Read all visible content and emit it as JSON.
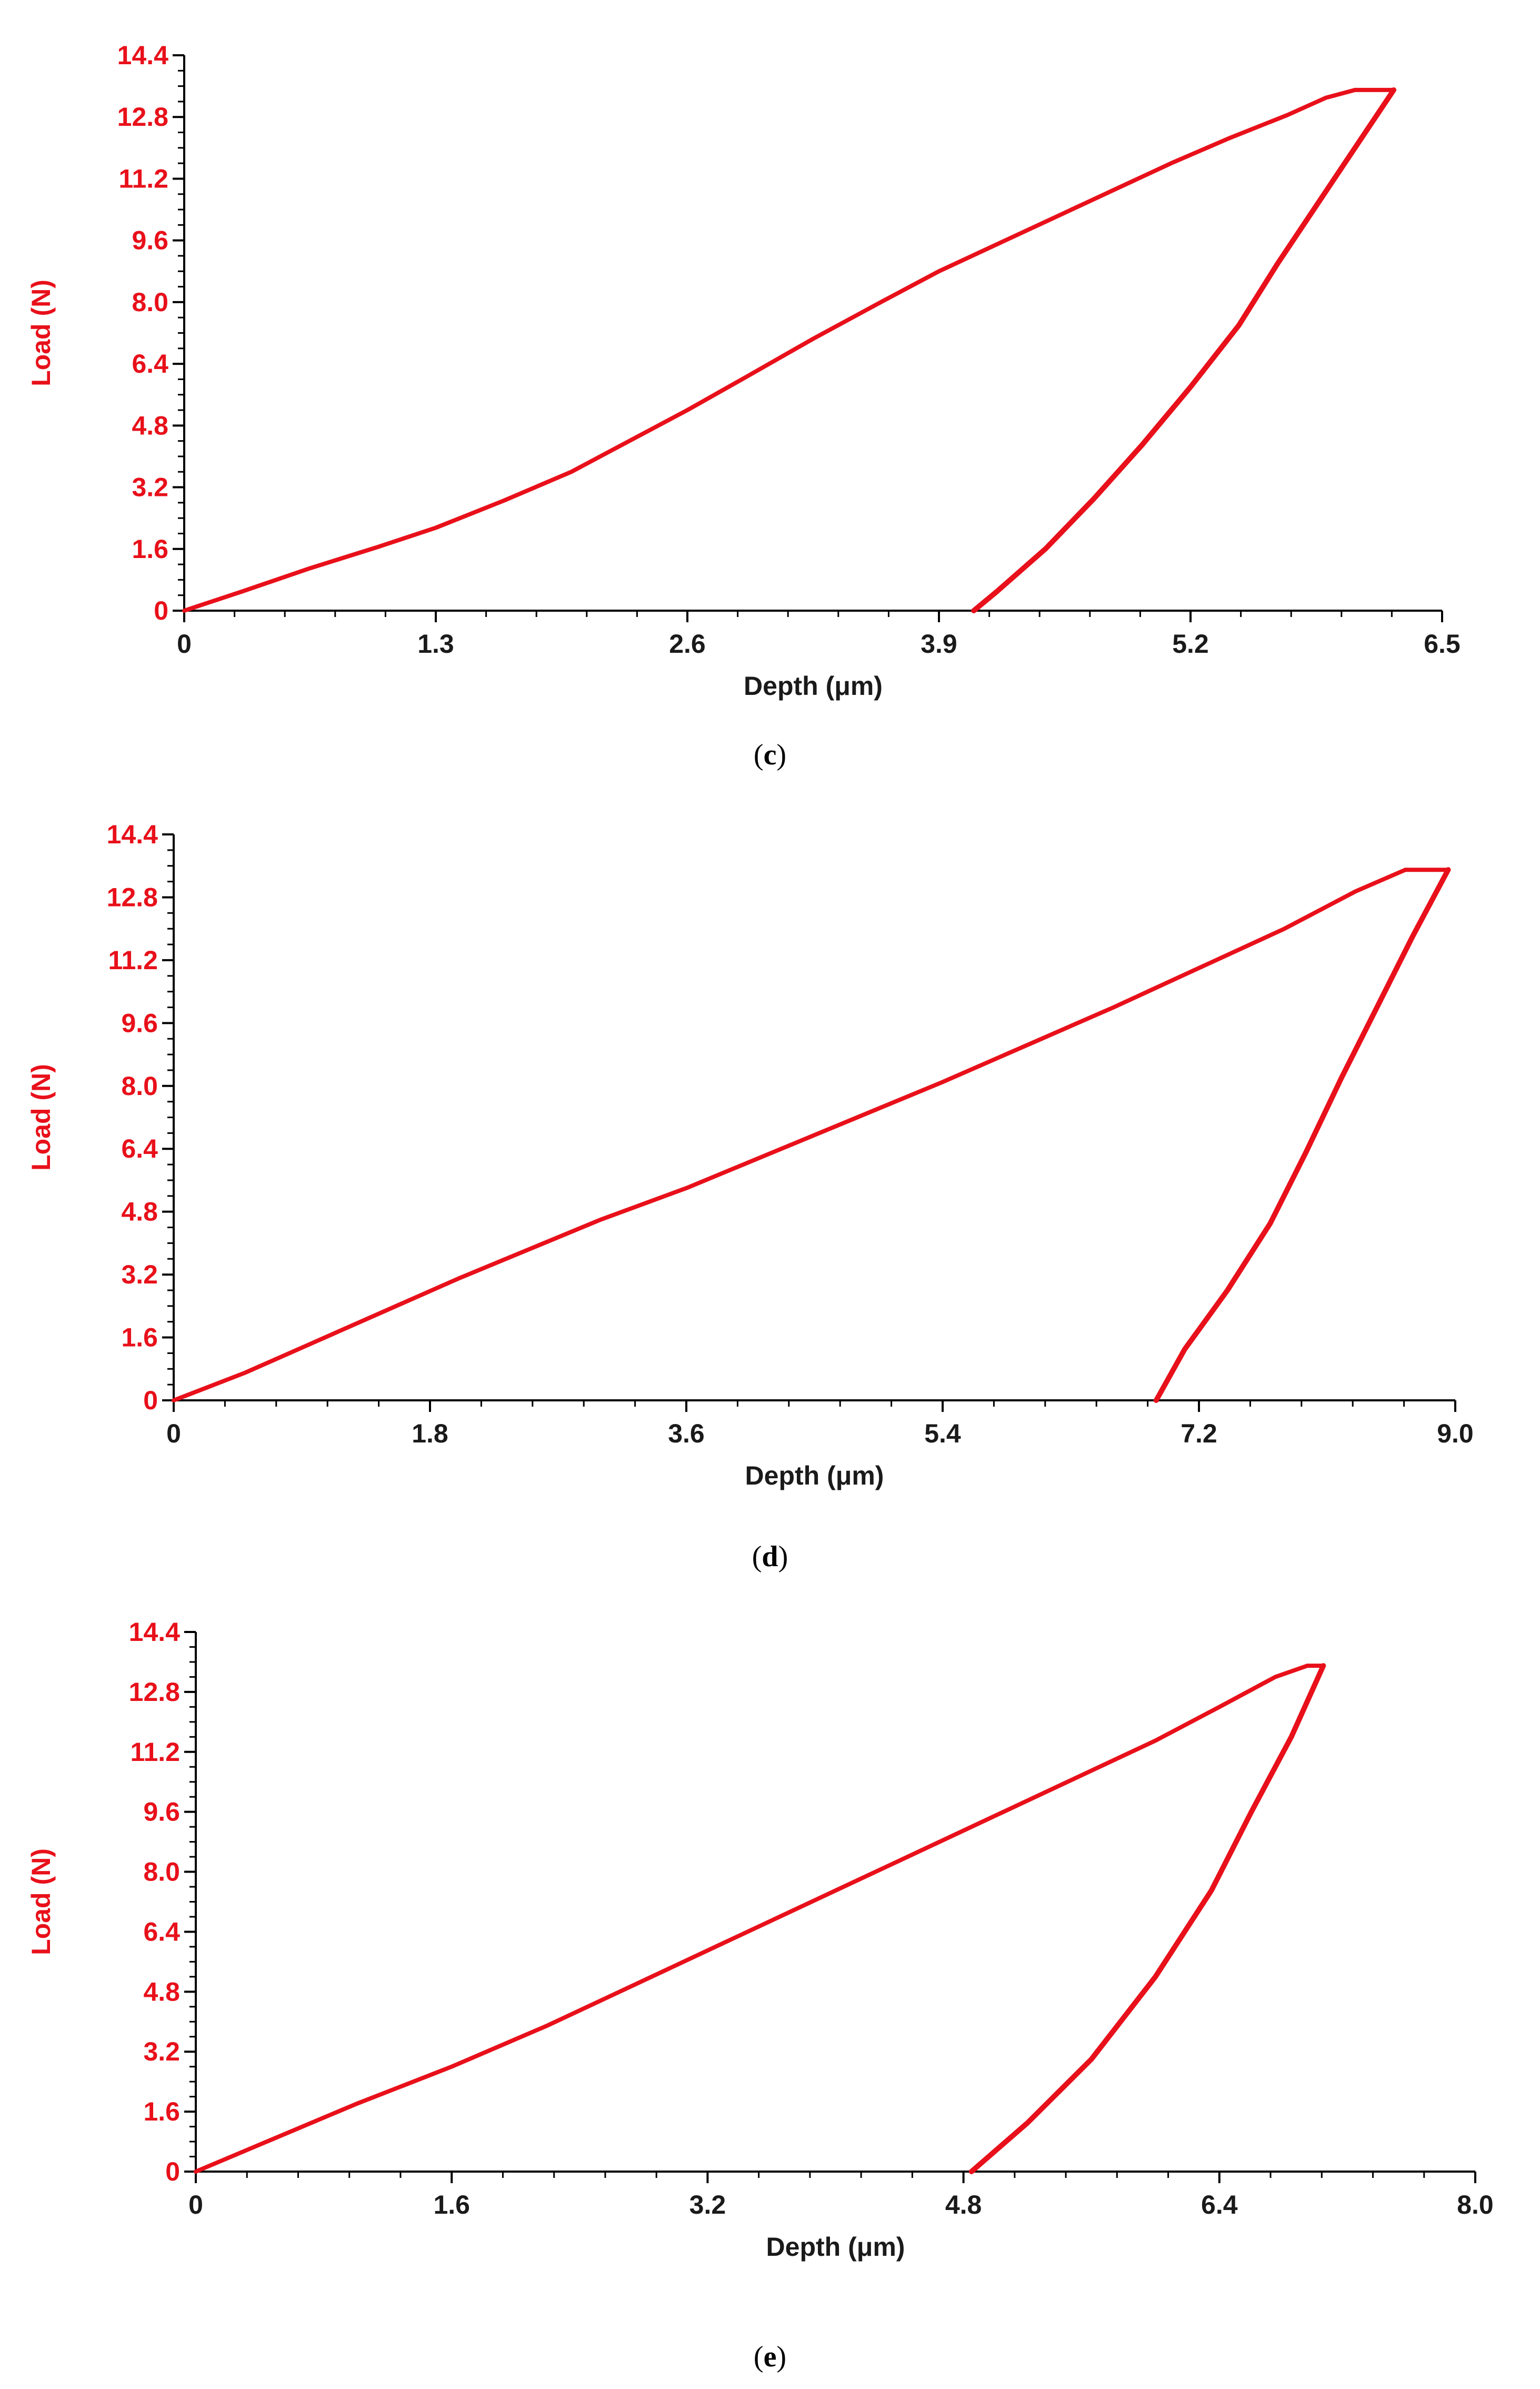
{
  "style": {
    "accent_color": "#e8101a",
    "axis_color": "#000000",
    "text_color": "#e8101a",
    "caption_color": "#000000"
  },
  "chart_data": [
    {
      "type": "line",
      "panel_label": "c",
      "xlabel": "Depth (μm)",
      "ylabel": "Load (N)",
      "xlim": [
        0,
        6.5
      ],
      "ylim": [
        0,
        14.4
      ],
      "x_ticks": [
        "0",
        "1.3",
        "2.6",
        "3.9",
        "5.2",
        "6.5"
      ],
      "y_ticks": [
        "0",
        "1.6",
        "3.2",
        "4.8",
        "6.4",
        "8.0",
        "9.6",
        "11.2",
        "12.8",
        "14.4"
      ],
      "grid": false,
      "series": [
        {
          "values": [
            [
              0,
              0
            ],
            [
              0.3,
              0.5
            ],
            [
              0.65,
              1.1
            ],
            [
              1.0,
              1.65
            ],
            [
              1.3,
              2.15
            ],
            [
              1.65,
              2.85
            ],
            [
              2.0,
              3.6
            ],
            [
              2.3,
              4.4
            ],
            [
              2.6,
              5.2
            ],
            [
              2.9,
              6.05
            ],
            [
              3.25,
              7.05
            ],
            [
              3.6,
              8.0
            ],
            [
              3.9,
              8.8
            ],
            [
              4.2,
              9.5
            ],
            [
              4.5,
              10.2
            ],
            [
              4.8,
              10.9
            ],
            [
              5.1,
              11.6
            ],
            [
              5.4,
              12.25
            ],
            [
              5.7,
              12.85
            ],
            [
              5.9,
              13.3
            ],
            [
              6.05,
              13.5
            ]
          ]
        },
        {
          "values": [
            [
              6.05,
              13.5
            ],
            [
              6.25,
              13.5
            ]
          ]
        },
        {
          "values": [
            [
              6.25,
              13.5
            ],
            [
              6.05,
              12.0
            ],
            [
              5.85,
              10.5
            ],
            [
              5.65,
              9.0
            ],
            [
              5.45,
              7.4
            ],
            [
              5.2,
              5.8
            ],
            [
              4.95,
              4.3
            ],
            [
              4.7,
              2.9
            ],
            [
              4.45,
              1.6
            ],
            [
              4.2,
              0.5
            ],
            [
              4.08,
              0
            ]
          ]
        }
      ]
    },
    {
      "type": "line",
      "panel_label": "d",
      "xlabel": "Depth (μm)",
      "ylabel": "Load (N)",
      "xlim": [
        0,
        9.0
      ],
      "ylim": [
        0,
        14.4
      ],
      "x_ticks": [
        "0",
        "1.8",
        "3.6",
        "5.4",
        "7.2",
        "9.0"
      ],
      "y_ticks": [
        "0",
        "1.6",
        "3.2",
        "4.8",
        "6.4",
        "8.0",
        "9.6",
        "11.2",
        "12.8",
        "14.4"
      ],
      "grid": false,
      "series": [
        {
          "values": [
            [
              0,
              0
            ],
            [
              0.5,
              0.7
            ],
            [
              1.0,
              1.5
            ],
            [
              1.5,
              2.3
            ],
            [
              2.0,
              3.1
            ],
            [
              2.5,
              3.85
            ],
            [
              3.0,
              4.6
            ],
            [
              3.6,
              5.4
            ],
            [
              4.2,
              6.3
            ],
            [
              4.8,
              7.2
            ],
            [
              5.4,
              8.1
            ],
            [
              6.0,
              9.05
            ],
            [
              6.6,
              10.0
            ],
            [
              7.2,
              11.0
            ],
            [
              7.8,
              12.0
            ],
            [
              8.3,
              12.95
            ],
            [
              8.65,
              13.5
            ]
          ]
        },
        {
          "values": [
            [
              8.65,
              13.5
            ],
            [
              8.95,
              13.5
            ]
          ]
        },
        {
          "values": [
            [
              8.95,
              13.5
            ],
            [
              8.7,
              11.8
            ],
            [
              8.45,
              10.0
            ],
            [
              8.2,
              8.2
            ],
            [
              7.95,
              6.3
            ],
            [
              7.7,
              4.5
            ],
            [
              7.4,
              2.8
            ],
            [
              7.1,
              1.3
            ],
            [
              6.9,
              0
            ]
          ]
        }
      ]
    },
    {
      "type": "line",
      "panel_label": "e",
      "xlabel": "Depth (μm)",
      "ylabel": "Load (N)",
      "xlim": [
        0,
        8.0
      ],
      "ylim": [
        0,
        14.4
      ],
      "x_ticks": [
        "0",
        "1.6",
        "3.2",
        "4.8",
        "6.4",
        "8.0"
      ],
      "y_ticks": [
        "0",
        "1.6",
        "3.2",
        "4.8",
        "6.4",
        "8.0",
        "9.6",
        "11.2",
        "12.8",
        "14.4"
      ],
      "grid": false,
      "series": [
        {
          "values": [
            [
              0,
              0
            ],
            [
              0.5,
              0.9
            ],
            [
              1.0,
              1.8
            ],
            [
              1.6,
              2.8
            ],
            [
              2.2,
              3.9
            ],
            [
              2.8,
              5.1
            ],
            [
              3.2,
              5.9
            ],
            [
              3.8,
              7.1
            ],
            [
              4.4,
              8.3
            ],
            [
              5.0,
              9.5
            ],
            [
              5.6,
              10.7
            ],
            [
              6.0,
              11.5
            ],
            [
              6.4,
              12.4
            ],
            [
              6.75,
              13.2
            ],
            [
              6.95,
              13.5
            ]
          ]
        },
        {
          "values": [
            [
              6.95,
              13.5
            ],
            [
              7.05,
              13.5
            ]
          ]
        },
        {
          "values": [
            [
              7.05,
              13.5
            ],
            [
              6.85,
              11.6
            ],
            [
              6.6,
              9.6
            ],
            [
              6.35,
              7.5
            ],
            [
              6.0,
              5.2
            ],
            [
              5.6,
              3.0
            ],
            [
              5.2,
              1.3
            ],
            [
              4.85,
              0
            ]
          ]
        }
      ]
    }
  ]
}
